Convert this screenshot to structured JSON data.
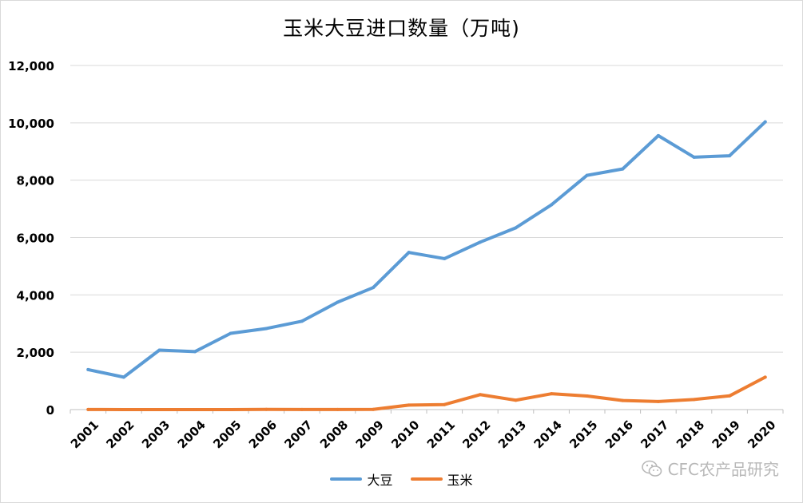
{
  "chart_data": {
    "type": "line",
    "title": "玉米大豆进口数量（万吨)",
    "categories": [
      "2001",
      "2002",
      "2003",
      "2004",
      "2005",
      "2006",
      "2007",
      "2008",
      "2009",
      "2010",
      "2011",
      "2012",
      "2013",
      "2014",
      "2015",
      "2016",
      "2017",
      "2018",
      "2019",
      "2020"
    ],
    "series": [
      {
        "name": "大豆",
        "color": "#5b9bd5",
        "values": [
          1394,
          1131,
          2074,
          2023,
          2659,
          2827,
          3082,
          3744,
          4255,
          5480,
          5264,
          5838,
          6338,
          7140,
          8169,
          8391,
          9553,
          8803,
          8851,
          10033
        ]
      },
      {
        "name": "玉米",
        "color": "#ed7d31",
        "values": [
          4,
          1,
          0,
          0,
          0,
          7,
          4,
          5,
          8,
          157,
          175,
          521,
          327,
          552,
          473,
          317,
          283,
          352,
          479,
          1130
        ]
      }
    ],
    "y_ticks": [
      "0",
      "2,000",
      "4,000",
      "6,000",
      "8,000",
      "10,000",
      "12,000"
    ],
    "ylim": [
      0,
      12000
    ],
    "grid": true,
    "legend": "bottom"
  },
  "watermark": {
    "text": "CFC农产品研究"
  }
}
